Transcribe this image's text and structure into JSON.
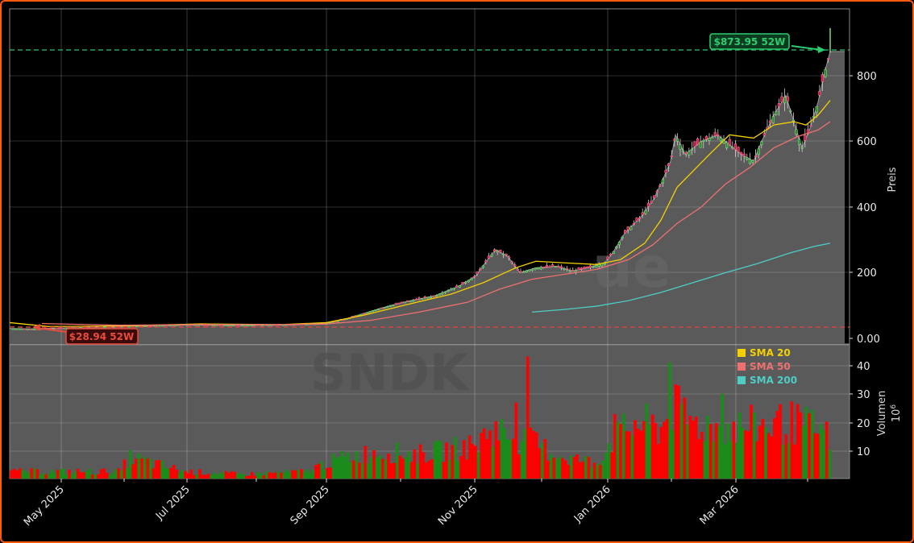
{
  "ticker_watermark": "SNDK",
  "watermark_secondary": "ue",
  "price_axis": {
    "label": "Preis",
    "ticks": [
      "0.00",
      "200",
      "400",
      "600",
      "800"
    ]
  },
  "volume_axis": {
    "label": "Volumen",
    "exponent": "10",
    "exponent_power": "6",
    "ticks": [
      "10",
      "20",
      "30",
      "40"
    ]
  },
  "x_axis": {
    "ticks": [
      "May 2025",
      "Jul 2025",
      "Sep 2025",
      "Nov 2025",
      "Jan 2026",
      "Mar 2026"
    ]
  },
  "annotations": {
    "high": {
      "label": "$873.95 52W",
      "value": 873.95,
      "color": "#2ecc71"
    },
    "low": {
      "label": "$28.94 52W",
      "value": 28.94,
      "color": "#e74c3c"
    }
  },
  "legend": [
    {
      "label": "SMA 20",
      "color": "#f5d000"
    },
    {
      "label": "SMA 50",
      "color": "#f07070"
    },
    {
      "label": "SMA 200",
      "color": "#4ecdc4"
    }
  ],
  "colors": {
    "up": "#1a8c1a",
    "down": "#ff0000",
    "panel": "#5a5a5a",
    "frame": "#ff5a0a"
  },
  "chart_data": {
    "type": "candlestick+volume",
    "title": "",
    "ylabel": "Preis",
    "ylabel_volume": "Volumen (10^6)",
    "ylim": [
      0,
      980
    ],
    "ylim_volume": [
      0,
      48
    ],
    "x": [
      "2025-04",
      "2025-05",
      "2025-06",
      "2025-07",
      "2025-08",
      "2025-09",
      "2025-10",
      "2025-11",
      "2025-12",
      "2026-01",
      "2026-02",
      "2026-03",
      "2026-04"
    ],
    "series": [
      {
        "name": "Close",
        "values": [
          30,
          35,
          40,
          45,
          45,
          55,
          130,
          250,
          220,
          380,
          600,
          680,
          874
        ]
      },
      {
        "name": "SMA 20",
        "values": [
          40,
          34,
          38,
          44,
          44,
          50,
          110,
          200,
          225,
          300,
          560,
          650,
          720
        ]
      },
      {
        "name": "SMA 50",
        "values": [
          null,
          38,
          37,
          42,
          44,
          46,
          80,
          160,
          205,
          270,
          460,
          590,
          655
        ]
      },
      {
        "name": "SMA 200",
        "values": [
          null,
          null,
          null,
          null,
          null,
          null,
          null,
          null,
          80,
          110,
          160,
          220,
          285
        ]
      },
      {
        "name": "Volume (M)",
        "values": [
          3,
          2,
          4,
          2,
          2,
          4,
          10,
          18,
          8,
          15,
          24,
          20,
          16
        ]
      }
    ],
    "annotations": [
      "$873.95 52W (52-week high)",
      "$28.94 52W (52-week low)"
    ],
    "legend_position": "upper right of volume panel",
    "grid": true
  }
}
